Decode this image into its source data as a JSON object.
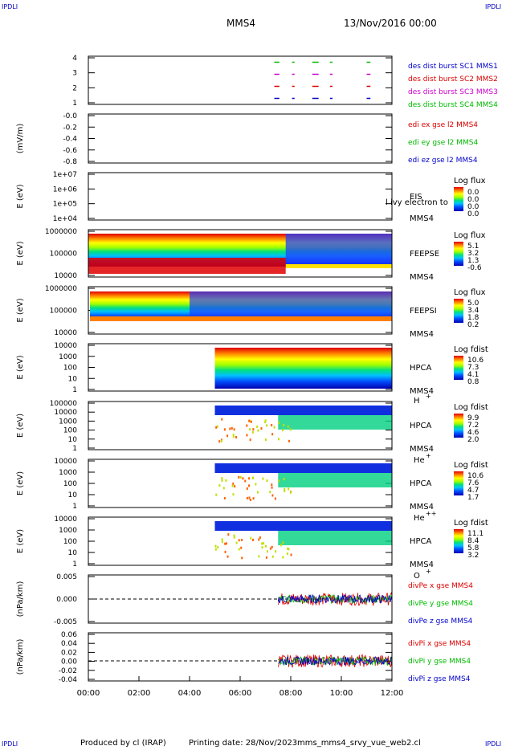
{
  "header": {
    "corner": "IPDLI",
    "spacecraft": "MMS4",
    "date": "13/Nov/2016 00:00"
  },
  "footer": {
    "produced": "Produced by cl (IRAP)",
    "printing": "Printing date: 28/Nov/2023",
    "script": "mms_mms4_srvy_vue_web2.cl"
  },
  "x_ticks": [
    "00:00",
    "02:00",
    "04:00",
    "06:00",
    "08:00",
    "10:00",
    "12:00"
  ],
  "chart_data": [
    {
      "type": "line",
      "panel": "burst",
      "yticks": [
        "4",
        "3",
        "2",
        "1"
      ],
      "ylim": [
        0.5,
        4.5
      ],
      "series": [
        {
          "name": "des dist burst SC1 MMS1",
          "color": "#0000cc"
        },
        {
          "name": "des dist burst SC2 MMS2",
          "color": "#dd0000"
        },
        {
          "name": "des dist burst SC3 MMS3",
          "color": "#cc00cc"
        },
        {
          "name": "des dist burst SC4 MMS4",
          "color": "#00bb00"
        }
      ],
      "segments_hours": [
        [
          7.35,
          7.55
        ],
        [
          8.05,
          8.15
        ],
        [
          8.85,
          9.1
        ],
        [
          9.55,
          9.65
        ],
        [
          11.0,
          11.15
        ]
      ]
    },
    {
      "type": "line",
      "panel": "edi",
      "ylabel": "(mV/m)",
      "yticks": [
        "-0.0",
        "-0.2",
        "-0.4",
        "-0.6",
        "-0.8"
      ],
      "ylim": [
        -0.9,
        0.0
      ],
      "series": [
        {
          "name": "edi ex gse l2 MMS4",
          "color": "#dd0000"
        },
        {
          "name": "edi ey gse l2 MMS4",
          "color": "#00bb00"
        },
        {
          "name": "edi ez gse l2 MMS4",
          "color": "#0000cc"
        }
      ]
    },
    {
      "type": "heatmap",
      "panel": "eis",
      "ylabel": "E (eV)",
      "yticks": [
        "1e+07",
        "1e+06",
        "1e+05",
        "1e+04"
      ],
      "label1": "EIS",
      "label2": "MMS4",
      "overlay": "l ivy electron to",
      "cb_title": "Log flux",
      "cb_ticks": [
        "0.0",
        "0.0",
        "0.0",
        "0.0"
      ]
    },
    {
      "type": "heatmap",
      "panel": "feepse",
      "ylabel": "E (eV)",
      "yticks": [
        "1000000",
        "100000",
        "10000"
      ],
      "label1": "FEEPSE",
      "label2": "MMS4",
      "cb_title": "Log flux",
      "cb_ticks": [
        "5.1",
        "3.2",
        "1.3",
        "-0.6"
      ]
    },
    {
      "type": "heatmap",
      "panel": "feepsi",
      "ylabel": "E (eV)",
      "yticks": [
        "1000000",
        "100000",
        "10000"
      ],
      "label1": "FEEPSI",
      "label2": "MMS4",
      "cb_title": "Log flux",
      "cb_ticks": [
        "5.0",
        "3.4",
        "1.8",
        "0.2"
      ]
    },
    {
      "type": "heatmap",
      "panel": "hpca_h",
      "ylabel": "E (eV)",
      "yticks": [
        "10000",
        "1000",
        "100",
        "10",
        "1"
      ],
      "label1": "HPCA",
      "label2": "MMS4",
      "species": "H",
      "charge": "+",
      "cb_title": "Log fdist",
      "cb_ticks": [
        "10.6",
        "7.3",
        "4.1",
        "0.8"
      ]
    },
    {
      "type": "heatmap",
      "panel": "hpca_he",
      "ylabel": "E (eV)",
      "yticks": [
        "100000",
        "10000",
        "1000",
        "100",
        "10",
        "1"
      ],
      "label1": "HPCA",
      "label2": "MMS4",
      "species": "He",
      "charge": "+",
      "cb_title": "Log fdist",
      "cb_ticks": [
        "9.9",
        "7.2",
        "4.6",
        "2.0"
      ]
    },
    {
      "type": "heatmap",
      "panel": "hpca_hepp",
      "ylabel": "E (eV)",
      "yticks": [
        "10000",
        "1000",
        "100",
        "10",
        "1"
      ],
      "label1": "HPCA",
      "label2": "MMS4",
      "species": "He",
      "charge": "++",
      "cb_title": "Log fdist",
      "cb_ticks": [
        "10.6",
        "7.6",
        "4.7",
        "1.7"
      ]
    },
    {
      "type": "heatmap",
      "panel": "hpca_o",
      "ylabel": "E (eV)",
      "yticks": [
        "10000",
        "1000",
        "100",
        "10",
        "1"
      ],
      "label1": "HPCA",
      "label2": "MMS4",
      "species": "O",
      "charge": "+",
      "cb_title": "Log fdist",
      "cb_ticks": [
        "11.1",
        "8.4",
        "5.8",
        "3.2"
      ]
    },
    {
      "type": "line",
      "panel": "divpe",
      "ylabel": "(nPa/km)",
      "yticks": [
        "0.005",
        "0.000",
        "-0.005"
      ],
      "ylim": [
        -0.009,
        0.009
      ],
      "series": [
        {
          "name": "divPe x gse MMS4",
          "color": "#dd0000"
        },
        {
          "name": "divPe y gse MMS4",
          "color": "#00bb00"
        },
        {
          "name": "divPe z gse MMS4",
          "color": "#0000cc"
        }
      ]
    },
    {
      "type": "line",
      "panel": "divpi",
      "ylabel": "(nPa/km)",
      "yticks": [
        "0.06",
        "0.04",
        "0.02",
        "0.00",
        "-0.02",
        "-0.04"
      ],
      "ylim": [
        -0.05,
        0.07
      ],
      "series": [
        {
          "name": "divPi x gse MMS4",
          "color": "#dd0000"
        },
        {
          "name": "divPi y gse MMS4",
          "color": "#00bb00"
        },
        {
          "name": "divPi z gse MMS4",
          "color": "#0000cc"
        }
      ]
    }
  ]
}
